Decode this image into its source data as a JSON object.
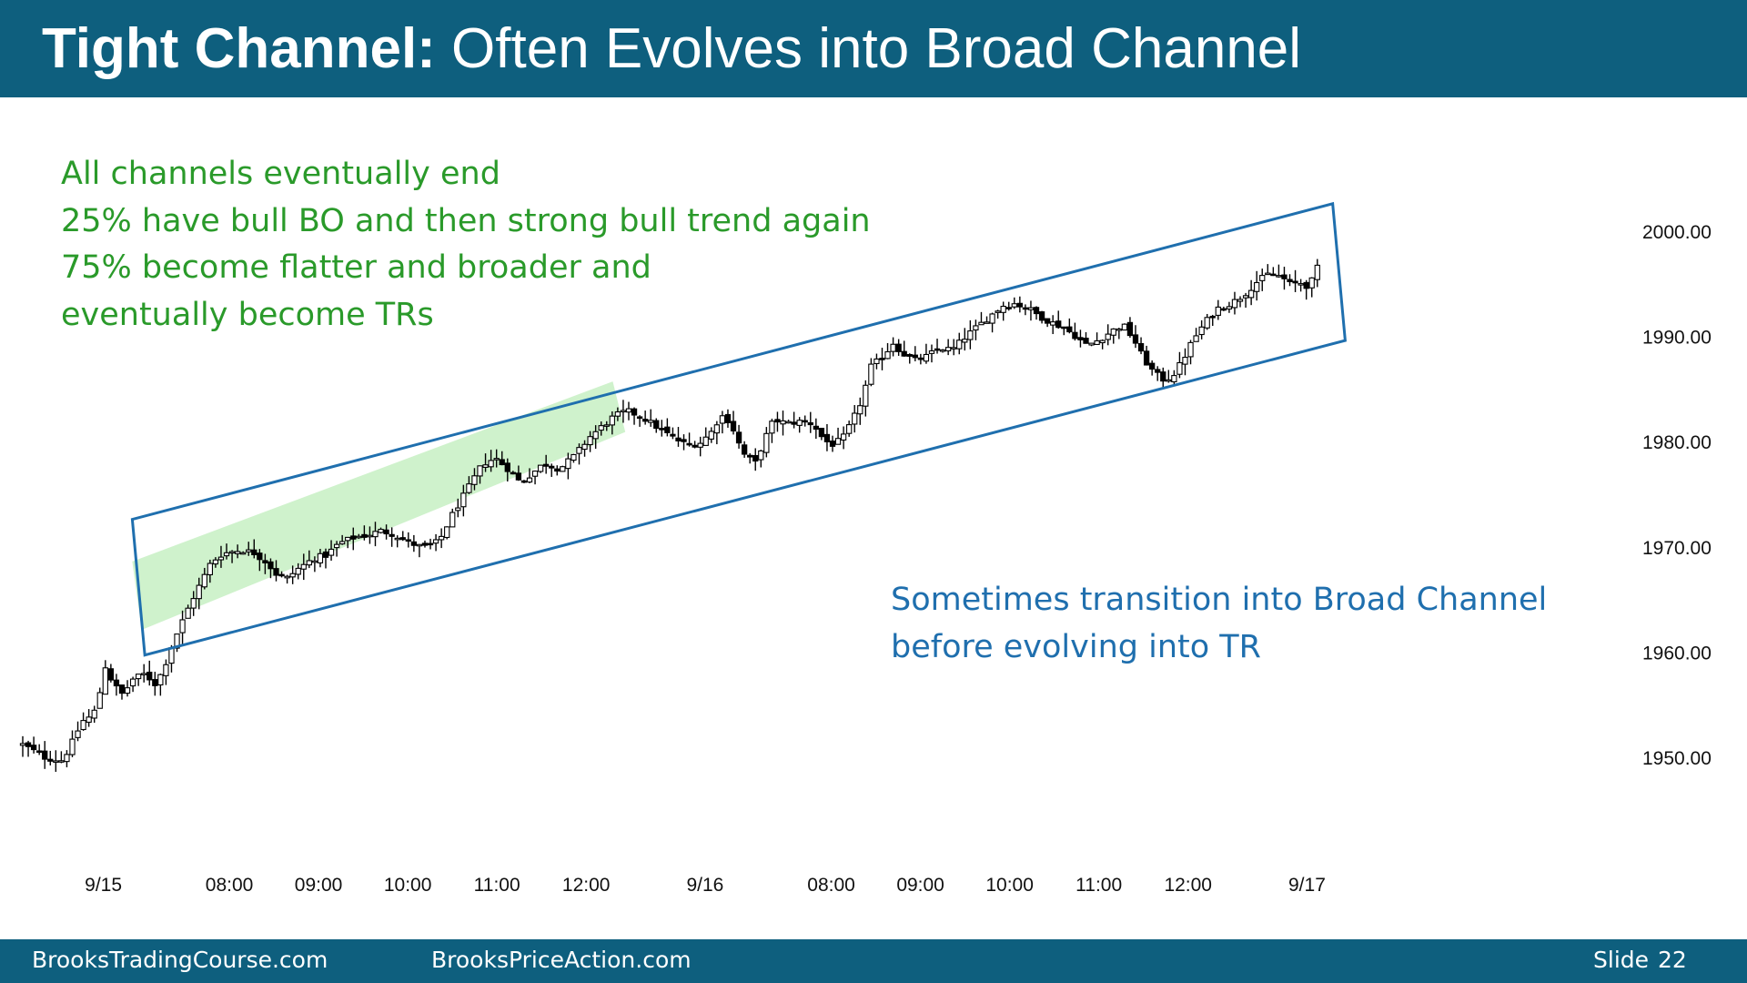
{
  "title": {
    "bold": "Tight Channel:",
    "rest": " Often Evolves into Broad Channel"
  },
  "notes": [
    "All channels eventually end",
    "25% have bull BO and then strong bull trend again",
    "75% become flatter and broader and",
    "eventually become TRs"
  ],
  "callout": [
    "Sometimes transition into Broad Channel",
    "before evolving into TR"
  ],
  "footer": {
    "site1": "BrooksTradingCourse.com",
    "site2": "BrooksPriceAction.com",
    "slide_label": "Slide",
    "slide_number": "22"
  },
  "colors": {
    "header": "#0e5f7e",
    "notes_text": "#2a9a2a",
    "callout_text": "#1f6fae",
    "channel_line": "#1f6fae",
    "tight_channel_fill": "#bfeebb",
    "bull_candle": "#ffffff",
    "bear_candle": "#000000"
  },
  "chart_data": {
    "type": "candlestick",
    "y_axis": {
      "labels": [
        "2000.00",
        "1990.00",
        "1980.00",
        "1970.00",
        "1960.00",
        "1950.00"
      ],
      "ylim": [
        1942.7,
        2006.7
      ],
      "position": "right"
    },
    "x_axis": {
      "labels": [
        "9/15",
        "08:00",
        "09:00",
        "10:00",
        "11:00",
        "12:00",
        "9/16",
        "08:00",
        "09:00",
        "10:00",
        "11:00",
        "12:00",
        "9/17"
      ]
    },
    "grid": false,
    "annotations": [
      {
        "kind": "broad_channel",
        "shape": "rotated rectangle",
        "corners": [
          [
            7.0,
            1972.7
          ],
          [
            7.8,
            1959.8
          ],
          [
            84.5,
            1989.7
          ],
          [
            83.7,
            2002.7
          ]
        ]
      },
      {
        "kind": "tight_channel",
        "shape": "shaded parallelogram",
        "corners": [
          [
            7.0,
            1968.7
          ],
          [
            7.6,
            1962.2
          ],
          [
            38.5,
            1981.0
          ],
          [
            37.7,
            1985.8
          ]
        ]
      }
    ],
    "candles_hint": "Approximately 240 five-minute candles from 9/15 through 9/17; close path runs from about 1950 up to about 1998."
  }
}
